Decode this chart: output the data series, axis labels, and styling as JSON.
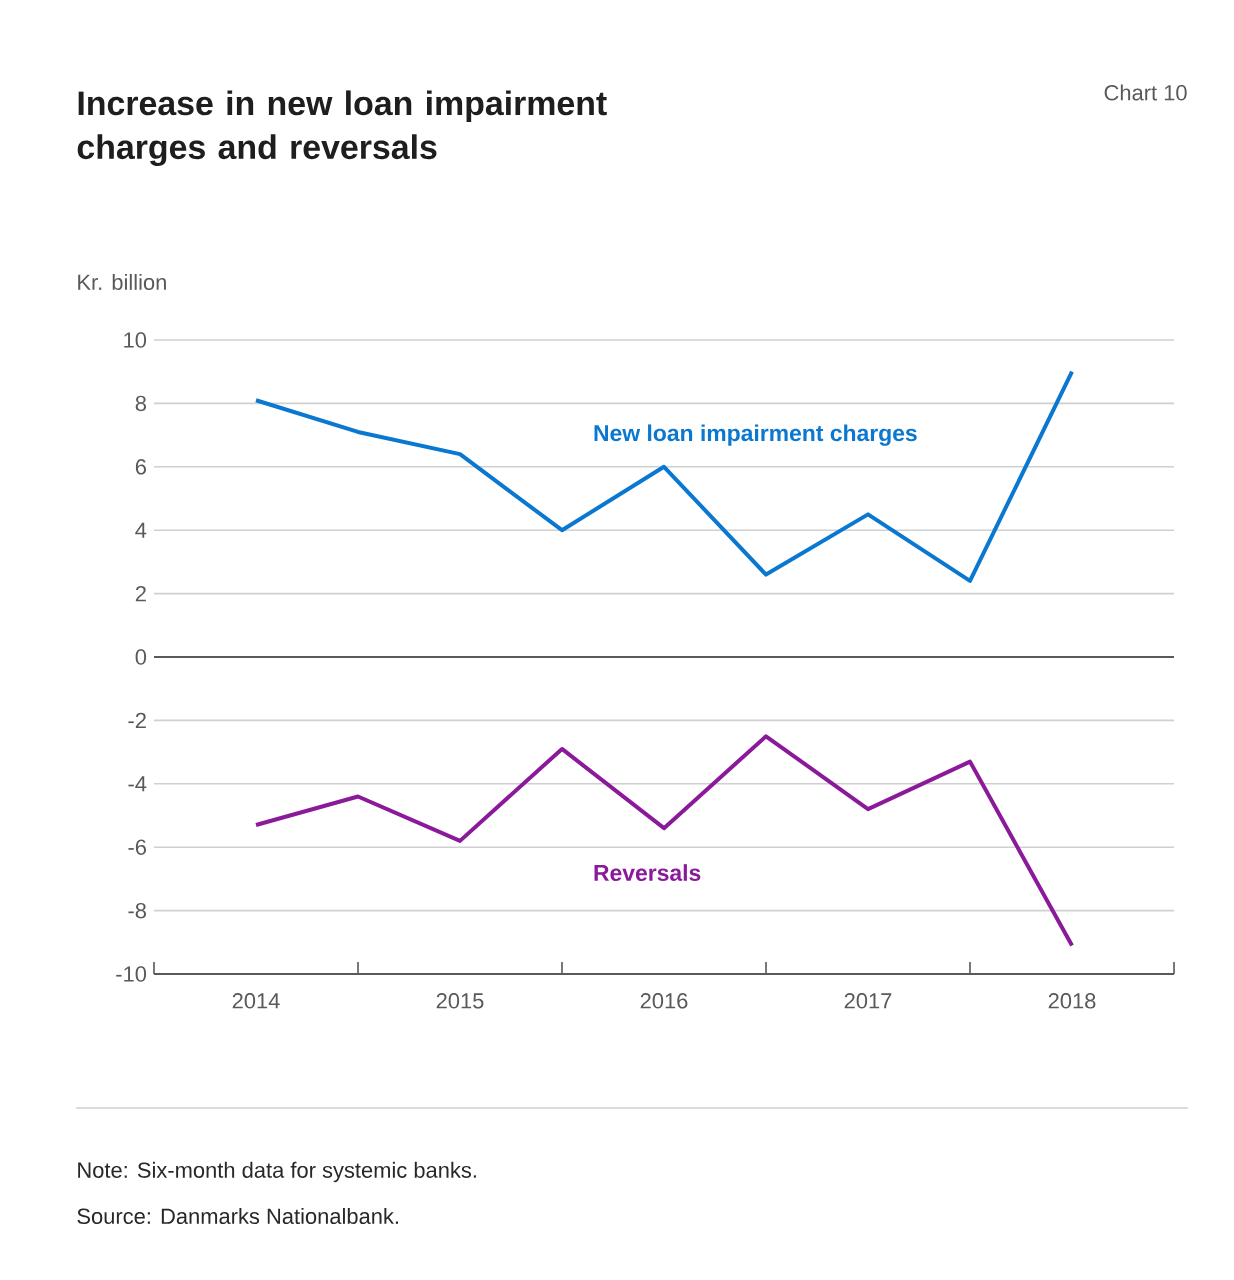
{
  "chart_data": {
    "type": "line",
    "title": "Increase in new loan impairment charges and reversals",
    "subtitle": "Chart 10",
    "ylabel": "Kr. billion",
    "categories": [
      "2014",
      null,
      "2015",
      null,
      "2016",
      null,
      "2017",
      null,
      "2018"
    ],
    "series": [
      {
        "name": "New loan impairment charges",
        "color": "#0a78d0",
        "values": [
          8.1,
          7.1,
          6.4,
          4.0,
          6.0,
          2.6,
          4.5,
          2.4,
          9.0
        ]
      },
      {
        "name": "Reversals",
        "color": "#8b1a9b",
        "values": [
          -5.3,
          -4.4,
          -5.8,
          -2.9,
          -5.4,
          -2.5,
          -4.8,
          -3.3,
          -9.1
        ]
      }
    ],
    "ylim": [
      -10,
      10
    ],
    "yticks": [
      -10,
      -8,
      -6,
      -4,
      -2,
      0,
      2,
      4,
      6,
      8,
      10
    ],
    "grid": "y",
    "legend": false,
    "marker": "none",
    "line_style": "solid",
    "ref_lines": [
      {
        "axis": "y",
        "value": 0,
        "color": "#595959"
      }
    ],
    "annotations": [
      "Note:\tSix-month data for systemic banks.",
      "Source:\tDanmarks Nationalbank."
    ]
  }
}
